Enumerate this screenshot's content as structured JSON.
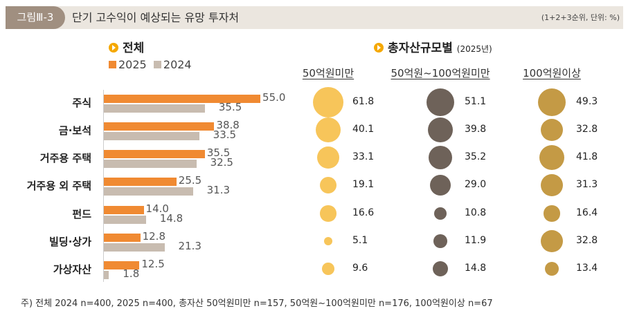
{
  "header": {
    "badge": "그림Ⅲ-3",
    "title": "단기 고수익이 예상되는 유망 투자처",
    "unit": "(1+2+3순위, 단위: %)"
  },
  "left_section": {
    "title": "전체"
  },
  "right_section": {
    "title": "총자산규모별",
    "sub": "(2025년)"
  },
  "colors": {
    "s2025": "#f08a32",
    "s2024": "#c8bcb0",
    "g1": "#f7c55a",
    "g2": "#6e6259",
    "g3": "#c49a45",
    "header_bg": "#ebe6df",
    "badge_bg": "#a08f80"
  },
  "chart_data": [
    {
      "type": "bar",
      "orientation": "horizontal",
      "categories": [
        "주식",
        "금·보석",
        "거주용 주택",
        "거주용 외 주택",
        "펀드",
        "빌딩·상가",
        "가상자산"
      ],
      "series": [
        {
          "name": "2025",
          "values": [
            55.0,
            38.8,
            35.5,
            25.5,
            14.0,
            12.8,
            12.5
          ]
        },
        {
          "name": "2024",
          "values": [
            35.5,
            33.5,
            32.5,
            31.3,
            14.8,
            21.3,
            1.8
          ]
        }
      ],
      "legend": "top-left",
      "grid": false
    },
    {
      "type": "scatter",
      "encoding": "bubble",
      "categories": [
        "주식",
        "금·보석",
        "거주용 주택",
        "거주용 외 주택",
        "펀드",
        "빌딩·상가",
        "가상자산"
      ],
      "groups": [
        "50억원미만",
        "50억원~100억원미만",
        "100억원이상"
      ],
      "series": [
        {
          "name": "50억원미만",
          "values": [
            61.8,
            40.1,
            33.1,
            19.1,
            16.6,
            5.1,
            9.6
          ]
        },
        {
          "name": "50억원~100억원미만",
          "values": [
            51.1,
            39.8,
            35.2,
            29.0,
            10.8,
            11.9,
            14.8
          ]
        },
        {
          "name": "100억원이상",
          "values": [
            49.3,
            32.8,
            41.8,
            31.3,
            16.4,
            32.8,
            13.4
          ]
        }
      ]
    }
  ],
  "footnote": "주) 전체 2024 n=400, 2025 n=400, 총자산 50억원미만 n=157, 50억원~100억원미만 n=176, 100억원이상 n=67"
}
